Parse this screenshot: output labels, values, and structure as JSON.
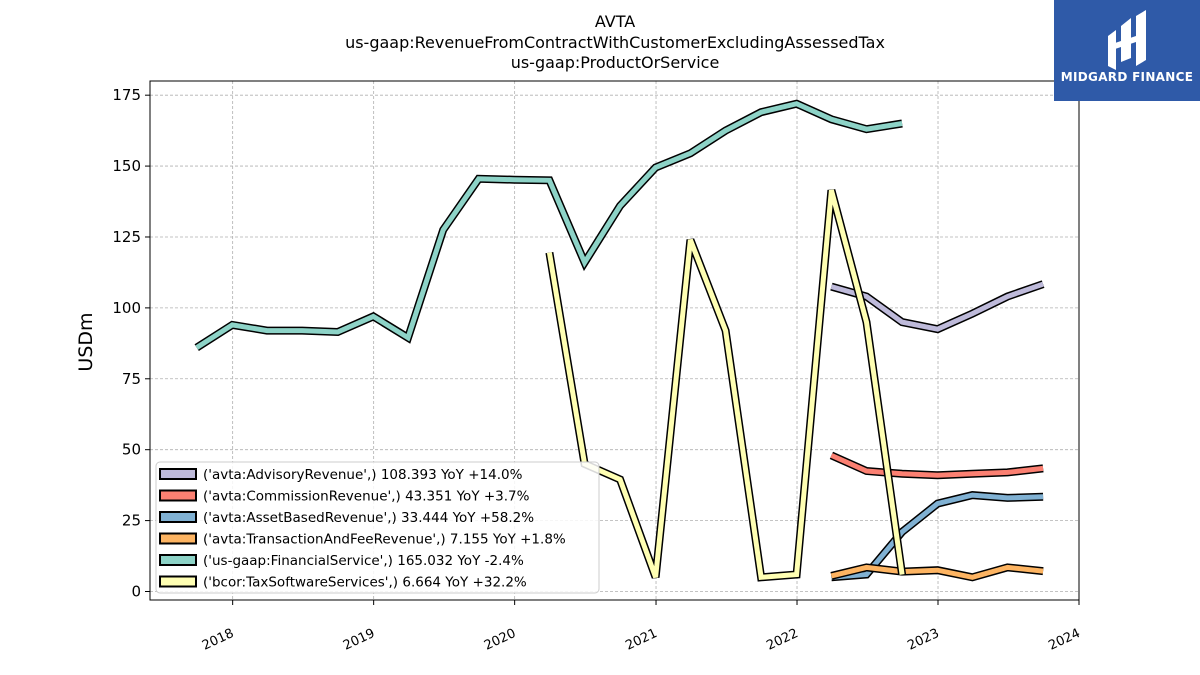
{
  "chart_data": {
    "type": "line",
    "title": [
      "AVTA",
      "us-gaap:RevenueFromContractWithCustomerExcludingAssessedTax",
      "us-gaap:ProductOrService"
    ],
    "ylabel": "USDm",
    "xlabel": "",
    "xlim": [
      "2017-06-01",
      "2024-01-01"
    ],
    "ylim": [
      -3,
      180
    ],
    "yticks": [
      0,
      25,
      50,
      75,
      100,
      125,
      150,
      175
    ],
    "xticks": [
      "2018",
      "2019",
      "2020",
      "2021",
      "2022",
      "2023",
      "2024"
    ],
    "grid": true,
    "legend_position": "lower-left",
    "series": [
      {
        "name": "('avta:AdvisoryRevenue',) 108.393 YoY +14.0%",
        "color": "#bebada",
        "points": [
          [
            "2022-03-31",
            107.5
          ],
          [
            "2022-06-30",
            104
          ],
          [
            "2022-09-30",
            95
          ],
          [
            "2022-12-31",
            92.5
          ],
          [
            "2023-03-31",
            98
          ],
          [
            "2023-06-30",
            104
          ],
          [
            "2023-09-30",
            108.4
          ]
        ]
      },
      {
        "name": "('avta:CommissionRevenue',) 43.351 YoY +3.7%",
        "color": "#fb8072",
        "points": [
          [
            "2022-03-31",
            48
          ],
          [
            "2022-06-30",
            42.5
          ],
          [
            "2022-09-30",
            41.5
          ],
          [
            "2022-12-31",
            41
          ],
          [
            "2023-03-31",
            41.5
          ],
          [
            "2023-06-30",
            42
          ],
          [
            "2023-09-30",
            43.4
          ]
        ]
      },
      {
        "name": "('avta:AssetBasedRevenue',) 33.444 YoY +58.2%",
        "color": "#80b1d3",
        "points": [
          [
            "2022-03-31",
            5
          ],
          [
            "2022-06-30",
            6
          ],
          [
            "2022-09-30",
            21
          ],
          [
            "2022-12-31",
            31
          ],
          [
            "2023-03-31",
            34
          ],
          [
            "2023-06-30",
            33
          ],
          [
            "2023-09-30",
            33.4
          ]
        ]
      },
      {
        "name": "('avta:TransactionAndFeeRevenue',) 7.155 YoY +1.8%",
        "color": "#fdb462",
        "points": [
          [
            "2022-03-31",
            5.5
          ],
          [
            "2022-06-30",
            8.5
          ],
          [
            "2022-09-30",
            7
          ],
          [
            "2022-12-31",
            7.5
          ],
          [
            "2023-03-31",
            5
          ],
          [
            "2023-06-30",
            8.5
          ],
          [
            "2023-09-30",
            7.2
          ]
        ]
      },
      {
        "name": "('us-gaap:FinancialService',) 165.032 YoY -2.4%",
        "color": "#8dd3c7",
        "points": [
          [
            "2017-09-30",
            86
          ],
          [
            "2017-12-31",
            94
          ],
          [
            "2018-03-31",
            92
          ],
          [
            "2018-06-30",
            92
          ],
          [
            "2018-09-30",
            91.5
          ],
          [
            "2018-12-31",
            97
          ],
          [
            "2019-03-31",
            89.5
          ],
          [
            "2019-06-30",
            127.5
          ],
          [
            "2019-09-30",
            145.5
          ],
          [
            "2019-12-31",
            145.2
          ],
          [
            "2020-03-31",
            145
          ],
          [
            "2020-06-30",
            116
          ],
          [
            "2020-09-30",
            136
          ],
          [
            "2020-12-31",
            149.5
          ],
          [
            "2021-03-31",
            154.5
          ],
          [
            "2021-06-30",
            162.5
          ],
          [
            "2021-09-30",
            169
          ],
          [
            "2021-12-31",
            172
          ],
          [
            "2022-03-31",
            166.5
          ],
          [
            "2022-06-30",
            163
          ],
          [
            "2022-09-30",
            165
          ]
        ]
      },
      {
        "name": "('bcor:TaxSoftwareServices',) 6.664 YoY +32.2%",
        "color": "#ffffb3",
        "points": [
          [
            "2020-03-31",
            119.5
          ],
          [
            "2020-06-30",
            45
          ],
          [
            "2020-09-30",
            39.5
          ],
          [
            "2020-12-31",
            5
          ],
          [
            "2021-03-31",
            124
          ],
          [
            "2021-06-30",
            92
          ],
          [
            "2021-09-30",
            5
          ],
          [
            "2021-12-31",
            6
          ],
          [
            "2022-03-31",
            141.5
          ],
          [
            "2022-06-30",
            95
          ],
          [
            "2022-09-30",
            6
          ]
        ]
      }
    ]
  },
  "logo": {
    "text": "MIDGARD FINANCE",
    "background": "#2f5aa8"
  }
}
